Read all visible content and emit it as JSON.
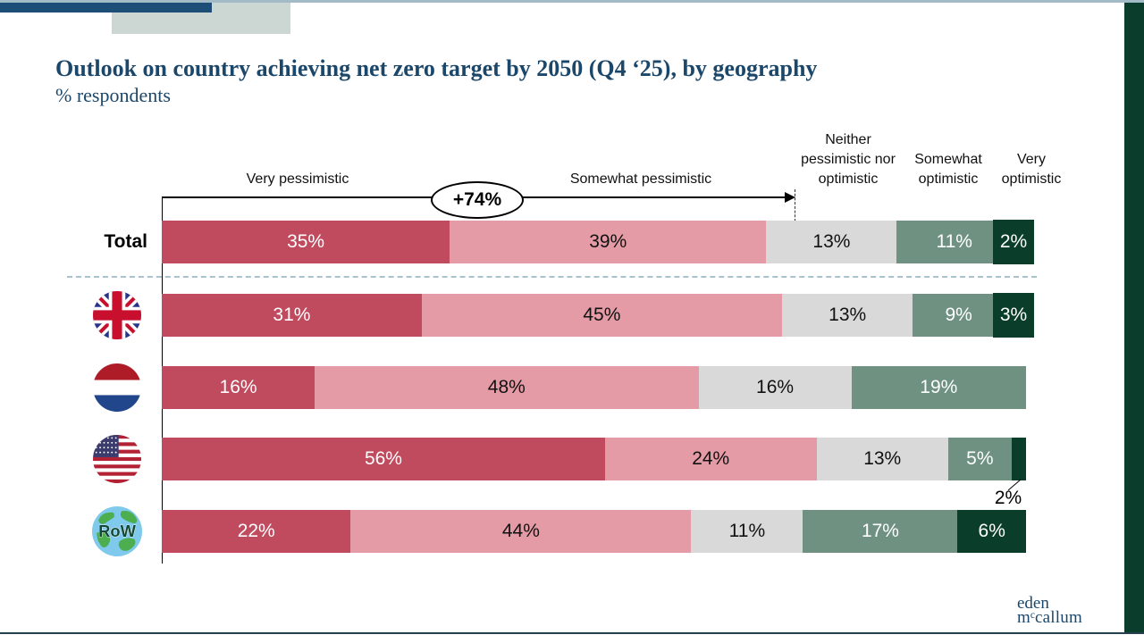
{
  "page": {
    "title": "Outlook on country achieving net zero target by 2050 (Q4 ‘25), by geography",
    "subtitle": "% respondents"
  },
  "colors": {
    "title_navy": "#1b476b",
    "navy_bar": "#1d4e78",
    "gray_block": "#ccd7d3",
    "top_line": "#a3bac7",
    "right_bar": "#0a3d2b",
    "bottom_rule": "#23404f",
    "dashed_sep": "#a9c3ce",
    "very_pessimistic": "#c04a5e",
    "somewhat_pessimistic": "#e59ba6",
    "neither": "#d9d9d9",
    "somewhat_optimistic": "#6e9181",
    "very_optimistic": "#0b3e2a"
  },
  "chart_data": {
    "type": "bar",
    "stacked": true,
    "unit": "%",
    "title": "Outlook on country achieving net zero target by 2050 (Q4 ‘25), by geography",
    "ylabel": "% respondents",
    "annotation": "+74%",
    "annotation_meaning": "sum of Very pessimistic + Somewhat pessimistic for Total row",
    "categories": [
      "Very pessimistic",
      "Somewhat pessimistic",
      "Neither pessimistic nor optimistic",
      "Somewhat optimistic",
      "Very optimistic"
    ],
    "rows": [
      {
        "label": "Total",
        "icon": "text",
        "values": [
          35,
          39,
          13,
          11,
          2
        ],
        "last_label": "box"
      },
      {
        "label": "UK",
        "icon": "uk-flag",
        "values": [
          31,
          45,
          13,
          9,
          3
        ],
        "last_label": "box"
      },
      {
        "label": "Netherlands",
        "icon": "nl-flag",
        "values": [
          16,
          48,
          16,
          19,
          0
        ],
        "last_label": "none"
      },
      {
        "label": "US",
        "icon": "us-flag",
        "values": [
          56,
          24,
          13,
          5,
          2
        ],
        "last_label": "below"
      },
      {
        "label": "RoW",
        "icon": "globe",
        "icon_text": "RoW",
        "values": [
          22,
          44,
          11,
          17,
          6
        ],
        "last_label": "inside"
      }
    ]
  },
  "logo": {
    "line1": "eden",
    "line2": "mᶜcallum"
  }
}
